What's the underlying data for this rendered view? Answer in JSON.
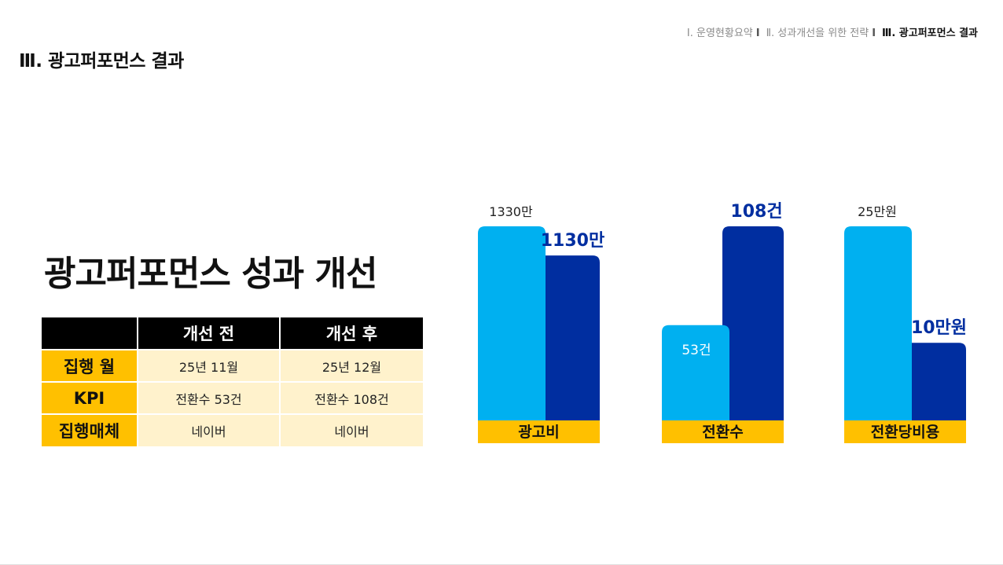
{
  "breadcrumb": {
    "items": [
      "Ⅰ. 운영현황요약",
      "Ⅱ. 성과개선을 위한 전략",
      "Ⅲ. 광고퍼포먼스 결과"
    ],
    "separator": "I"
  },
  "section_title": "Ⅲ. 광고퍼포먼스 결과",
  "main_title": "광고퍼포먼스 성과 개선",
  "table": {
    "headers": [
      "",
      "개선 전",
      "개선 후"
    ],
    "rows": [
      {
        "label": "집행 월",
        "before": "25년 11월",
        "after": "25년 12월"
      },
      {
        "label": "KPI",
        "before": "전환수 53건",
        "after": "전환수 108건"
      },
      {
        "label": "집행매체",
        "before": "네이버",
        "after": "네이버"
      }
    ]
  },
  "colors": {
    "before": "#00b0f0",
    "after": "#002ea0",
    "category_bar": "#ffc000",
    "header_bg": "#000000",
    "label_bg": "#ffc000",
    "cell_bg": "#fff2cc"
  },
  "chart_data": {
    "type": "bar",
    "title": "",
    "series_names": [
      "개선 전",
      "개선 후"
    ],
    "groups": [
      {
        "category": "광고비",
        "before": 13300000,
        "after": 11300000,
        "before_label": "1330만",
        "after_label": "1130만"
      },
      {
        "category": "전환수",
        "before": 53,
        "after": 108,
        "before_label": "53건",
        "after_label": "108건"
      },
      {
        "category": "전환당비용",
        "before": 250000,
        "after": 100000,
        "before_label": "25만원",
        "after_label": "10만원"
      }
    ]
  }
}
